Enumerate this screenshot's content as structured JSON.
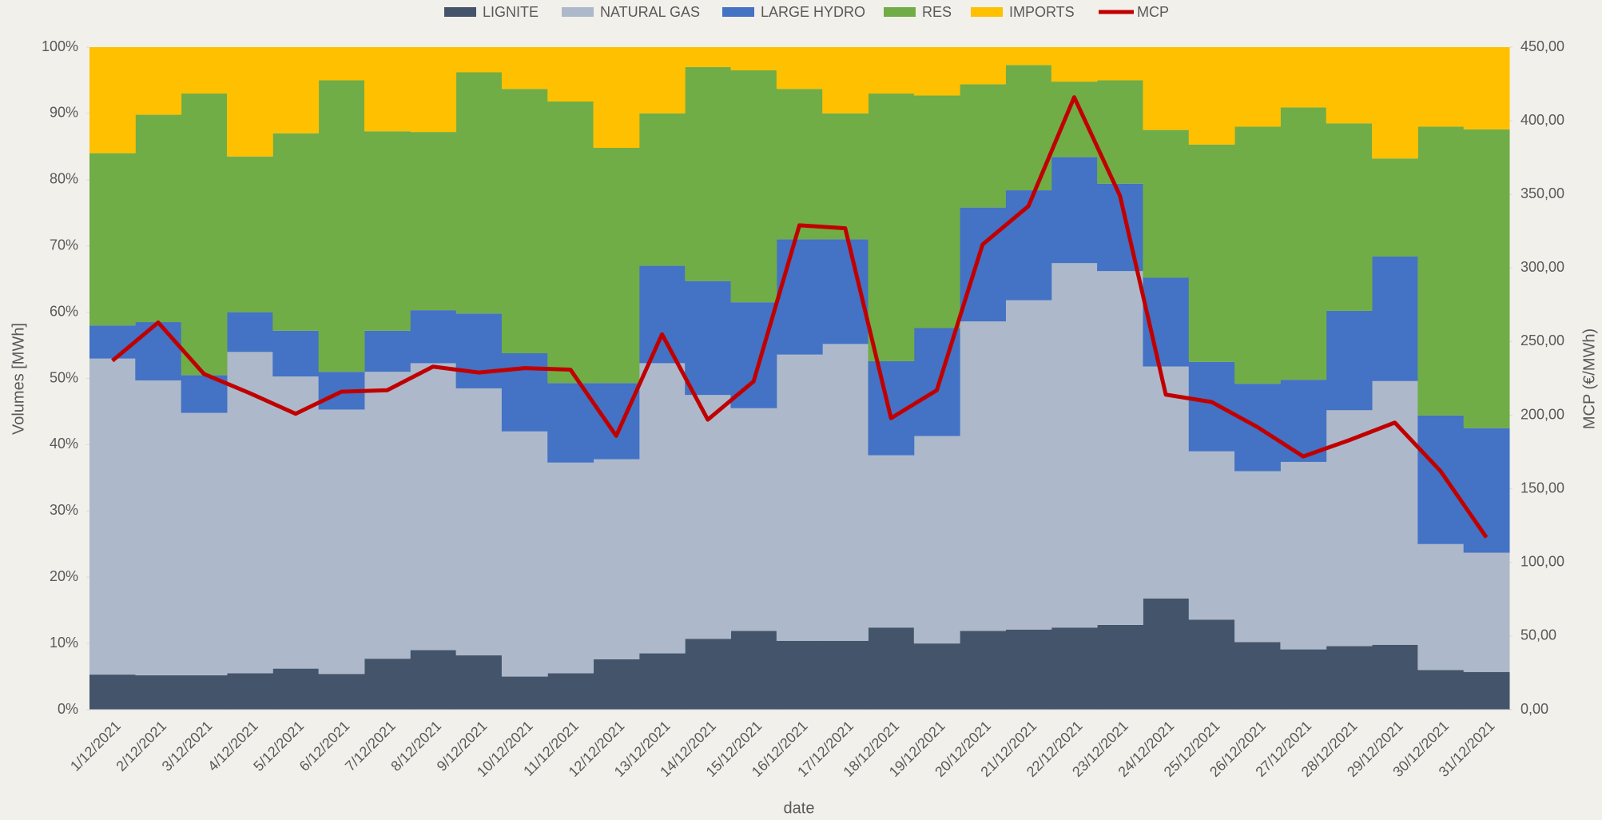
{
  "chart_data": {
    "type": "bar",
    "stacked": true,
    "x_label": "date",
    "y_label": "Volumes [MWh]",
    "y2_label": "MCP (€/MWh)",
    "categories": [
      "1/12/2021",
      "2/12/2021",
      "3/12/2021",
      "4/12/2021",
      "5/12/2021",
      "6/12/2021",
      "7/12/2021",
      "8/12/2021",
      "9/12/2021",
      "10/12/2021",
      "11/12/2021",
      "12/12/2021",
      "13/12/2021",
      "14/12/2021",
      "15/12/2021",
      "16/12/2021",
      "17/12/2021",
      "18/12/2021",
      "19/12/2021",
      "20/12/2021",
      "21/12/2021",
      "22/12/2021",
      "23/12/2021",
      "24/12/2021",
      "25/12/2021",
      "26/12/2021",
      "27/12/2021",
      "28/12/2021",
      "29/12/2021",
      "30/12/2021",
      "31/12/2021"
    ],
    "series": [
      {
        "name": "LIGNITE",
        "color": "#44546a",
        "values": [
          5.3,
          5.2,
          5.2,
          5.5,
          6.2,
          5.4,
          7.7,
          9.0,
          8.2,
          5.0,
          5.5,
          7.6,
          8.5,
          10.7,
          11.9,
          10.4,
          10.4,
          12.4,
          10.0,
          11.9,
          12.1,
          12.4,
          12.8,
          16.8,
          13.6,
          10.2,
          9.1,
          9.6,
          9.8,
          6.0,
          5.7
        ]
      },
      {
        "name": "NATURAL GAS",
        "color": "#adb9ca",
        "values": [
          47.7,
          44.5,
          39.6,
          48.5,
          44.1,
          39.9,
          43.3,
          43.3,
          40.3,
          37.0,
          31.8,
          30.2,
          43.8,
          36.8,
          33.6,
          43.2,
          44.8,
          26.0,
          31.3,
          46.7,
          49.7,
          55.0,
          53.4,
          35.0,
          25.4,
          25.8,
          28.3,
          35.6,
          39.8,
          19.0,
          18.0
        ]
      },
      {
        "name": "LARGE HYDRO",
        "color": "#4472c4",
        "values": [
          5.0,
          8.8,
          5.7,
          6.0,
          6.9,
          5.7,
          6.2,
          8.0,
          11.3,
          11.8,
          12.0,
          11.5,
          14.7,
          17.2,
          16.0,
          17.4,
          15.8,
          14.2,
          16.3,
          17.2,
          16.6,
          16.0,
          13.2,
          13.4,
          13.5,
          13.2,
          12.4,
          15.0,
          18.8,
          19.4,
          18.8
        ]
      },
      {
        "name": "RES",
        "color": "#70ad47",
        "values": [
          26.0,
          31.3,
          42.5,
          23.5,
          29.8,
          44.0,
          30.1,
          26.9,
          36.4,
          39.9,
          42.5,
          35.5,
          23.0,
          32.3,
          35.0,
          22.7,
          19.0,
          40.4,
          35.1,
          18.6,
          18.9,
          11.4,
          15.6,
          22.3,
          32.8,
          38.8,
          41.1,
          28.3,
          14.8,
          43.6,
          45.1
        ]
      },
      {
        "name": "IMPORTS",
        "color": "#ffc000",
        "values": [
          16.0,
          10.2,
          7.0,
          16.5,
          13.0,
          5.0,
          12.7,
          12.8,
          3.8,
          6.3,
          8.2,
          15.2,
          10.0,
          3.0,
          3.5,
          6.3,
          10.0,
          7.0,
          7.3,
          5.6,
          2.7,
          5.2,
          5.0,
          12.5,
          14.7,
          12.0,
          9.1,
          11.5,
          16.8,
          12.0,
          12.4
        ]
      },
      {
        "name": "MCP",
        "color": "#c00000",
        "type": "line",
        "axis": "y2",
        "values": [
          237,
          263,
          228,
          215,
          201,
          216,
          217,
          233,
          229,
          232,
          231,
          186,
          255,
          197,
          223,
          329,
          327,
          198,
          217,
          316,
          342,
          416,
          349,
          214,
          209,
          192,
          172,
          183,
          195,
          162,
          117
        ]
      }
    ],
    "ylim": [
      0,
      100
    ],
    "yticks": [
      {
        "value": 0,
        "label": "0%"
      },
      {
        "value": 10,
        "label": "10%"
      },
      {
        "value": 20,
        "label": "20%"
      },
      {
        "value": 30,
        "label": "30%"
      },
      {
        "value": 40,
        "label": "40%"
      },
      {
        "value": 50,
        "label": "50%"
      },
      {
        "value": 60,
        "label": "60%"
      },
      {
        "value": 70,
        "label": "70%"
      },
      {
        "value": 80,
        "label": "80%"
      },
      {
        "value": 90,
        "label": "90%"
      },
      {
        "value": 100,
        "label": "100%"
      }
    ],
    "y2lim": [
      0,
      450
    ],
    "y2ticks": [
      {
        "value": 0,
        "label": "0,00"
      },
      {
        "value": 50,
        "label": "50,00"
      },
      {
        "value": 100,
        "label": "100,00"
      },
      {
        "value": 150,
        "label": "150,00"
      },
      {
        "value": 200,
        "label": "200,00"
      },
      {
        "value": 250,
        "label": "250,00"
      },
      {
        "value": 300,
        "label": "300,00"
      },
      {
        "value": 350,
        "label": "350,00"
      },
      {
        "value": 400,
        "label": "400,00"
      },
      {
        "value": 450,
        "label": "450,00"
      }
    ],
    "legend": "top"
  }
}
